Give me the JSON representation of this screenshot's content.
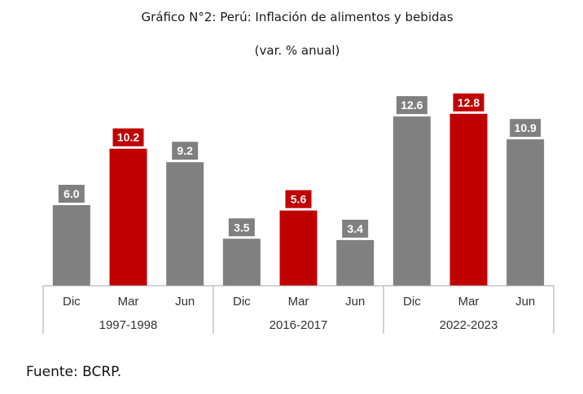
{
  "chart_data": {
    "type": "bar",
    "title": "Gráfico N°2: Perú: Inflación de alimentos y bebidas",
    "subtitle": "(var. % anual)",
    "ylim": [
      0,
      14
    ],
    "groups": [
      {
        "label": "1997-1998",
        "bars": [
          {
            "category": "Dic",
            "value": 6.0,
            "label": "6.0",
            "highlight": false
          },
          {
            "category": "Mar",
            "value": 10.2,
            "label": "10.2",
            "highlight": true
          },
          {
            "category": "Jun",
            "value": 9.2,
            "label": "9.2",
            "highlight": false
          }
        ]
      },
      {
        "label": "2016-2017",
        "bars": [
          {
            "category": "Dic",
            "value": 3.5,
            "label": "3.5",
            "highlight": false
          },
          {
            "category": "Mar",
            "value": 5.6,
            "label": "5.6",
            "highlight": true
          },
          {
            "category": "Jun",
            "value": 3.4,
            "label": "3.4",
            "highlight": false
          }
        ]
      },
      {
        "label": "2022-2023",
        "bars": [
          {
            "category": "Dic",
            "value": 12.6,
            "label": "12.6",
            "highlight": false
          },
          {
            "category": "Mar",
            "value": 12.8,
            "label": "12.8",
            "highlight": true
          },
          {
            "category": "Jun",
            "value": 10.9,
            "label": "10.9",
            "highlight": false
          }
        ]
      }
    ],
    "colors": {
      "default": "#808080",
      "highlight": "#c00000"
    }
  },
  "source": "Fuente: BCRP."
}
